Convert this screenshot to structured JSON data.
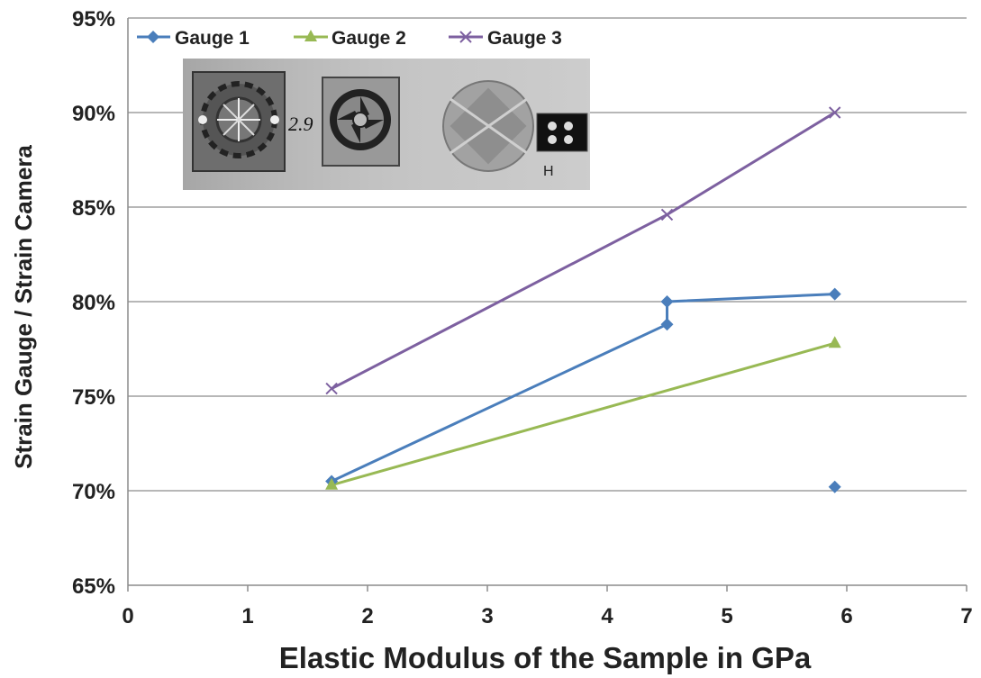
{
  "chart_data": {
    "type": "line",
    "title": "",
    "xlabel": "Elastic Modulus of the Sample in GPa",
    "ylabel": "Strain Gauge /  Strain Camera",
    "xlim": [
      0,
      7
    ],
    "ylim": [
      0.65,
      0.95
    ],
    "x_ticks": [
      "0",
      "1",
      "2",
      "3",
      "4",
      "5",
      "6",
      "7"
    ],
    "y_ticks": [
      "95%",
      "90%",
      "85%",
      "80%",
      "75%",
      "70%",
      "65%"
    ],
    "grid": "horizontal",
    "legend_position": "top-left",
    "series": [
      {
        "name": "Gauge 1",
        "color": "#4a7ebb",
        "marker": "diamond",
        "points": [
          [
            1.7,
            0.705
          ],
          [
            4.5,
            0.788
          ],
          [
            4.5,
            0.8
          ],
          [
            5.9,
            0.804
          ],
          null,
          [
            5.9,
            0.702
          ]
        ]
      },
      {
        "name": "Gauge 2",
        "color": "#98b954",
        "marker": "triangle",
        "points": [
          [
            1.7,
            0.703
          ],
          [
            5.9,
            0.778
          ]
        ]
      },
      {
        "name": "Gauge 3",
        "color": "#7d60a0",
        "marker": "x",
        "points": [
          [
            1.7,
            0.754
          ],
          [
            4.5,
            0.846
          ],
          [
            5.9,
            0.9
          ]
        ]
      }
    ],
    "inset": {
      "description_icon": "strain-gauge-samples-photo",
      "handwritten": [
        "2.9",
        "H"
      ]
    }
  }
}
